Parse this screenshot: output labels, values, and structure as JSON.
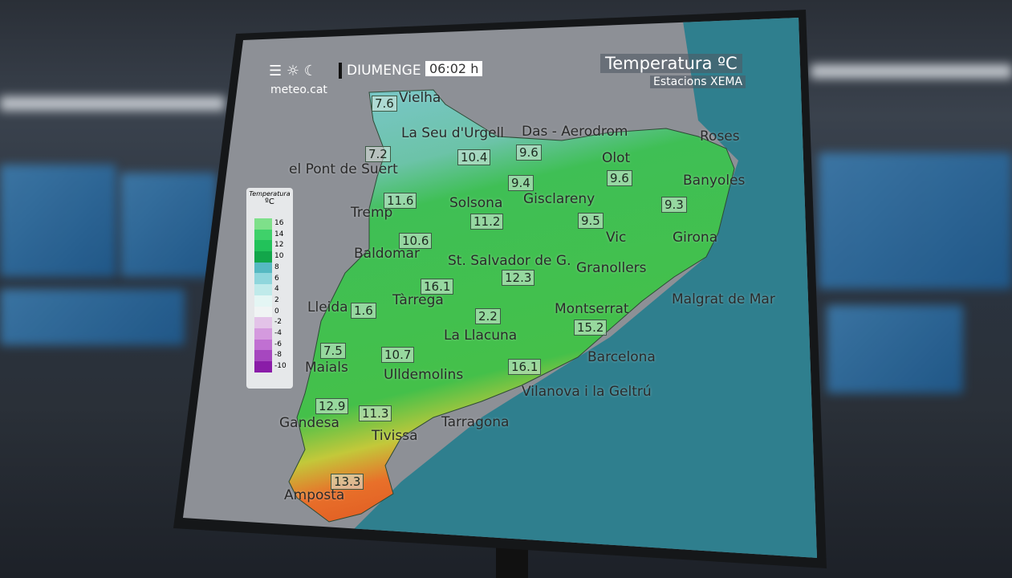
{
  "header": {
    "logo_text": "meteo.cat",
    "day": "DIUMENGE",
    "time": "06:02 h",
    "title": "Temperatura ºC",
    "subtitle": "Estacions XEMA"
  },
  "legend": {
    "title": "Temperatura",
    "unit": "ºC",
    "ticks": [
      "16",
      "14",
      "12",
      "10",
      "8",
      "6",
      "4",
      "2",
      "0",
      "-2",
      "-4",
      "-6",
      "-8",
      "-10"
    ],
    "colors": [
      "#7ee08a",
      "#3fd16a",
      "#22c25a",
      "#12a64a",
      "#56b9c2",
      "#8fd6dc",
      "#bfeaea",
      "#e4f6f4",
      "#f0f4f4",
      "#e3c3e8",
      "#d49ade",
      "#c070d2",
      "#a647bf",
      "#8a1ca8"
    ]
  },
  "places": [
    "Vielha",
    "La Seu d'Urgell",
    "Das - Aerodrom",
    "el Pont de Suert",
    "Olot",
    "Roses",
    "Banyoles",
    "Tremp",
    "Solsona",
    "Gisclareny",
    "Vic",
    "Girona",
    "Baldomar",
    "St. Salvador de G.",
    "Granollers",
    "Tàrrega",
    "Lleida",
    "Montserrat",
    "Malgrat de Mar",
    "La Llacuna",
    "Maials",
    "Ulldemolins",
    "Barcelona",
    "Vilanova i la Geltrú",
    "Gandesa",
    "Tarragona",
    "Tivissa",
    "Amposta"
  ],
  "values": [
    "7.6",
    "7.2",
    "10.4",
    "9.6",
    "9.6",
    "9.3",
    "11.6",
    "9.4",
    "11.2",
    "9.5",
    "10.6",
    "12.3",
    "16.1",
    "1.6",
    "2.2",
    "15.2",
    "7.5",
    "10.7",
    "16.1",
    "12.9",
    "11.3",
    "13.3"
  ],
  "colors": {
    "sea": "#2f7f8e",
    "land_outside": "#8d9096",
    "cold": "#7cc7cf",
    "mild": "#3fbf55",
    "warm": "#e8702a"
  }
}
